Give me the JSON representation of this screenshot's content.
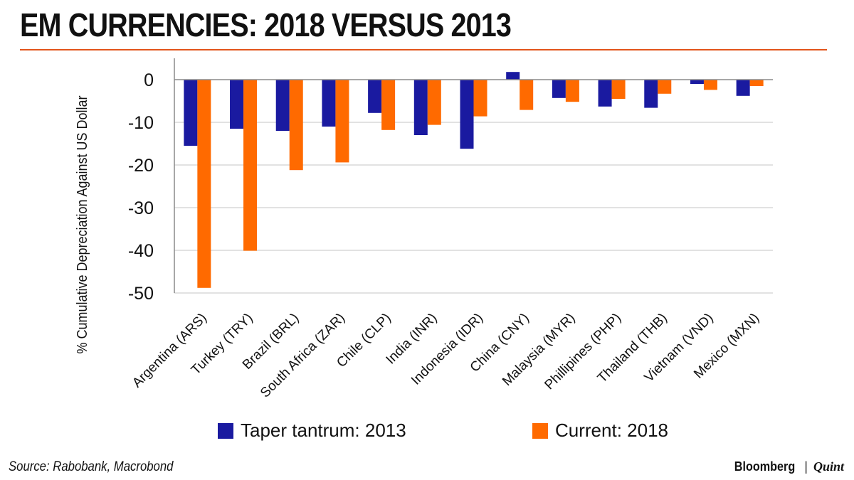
{
  "title": "EM CURRENCIES: 2018 VERSUS 2013",
  "source": "Source: Rabobank, Macrobond",
  "brand": {
    "name": "Bloomberg",
    "separator": "|",
    "partner": "Quint"
  },
  "colors": {
    "accent_rule": "#e2541b",
    "series_2013": "#1a1aa0",
    "series_2018": "#ff6a00",
    "grid": "#d9d9d9"
  },
  "chart_data": {
    "type": "bar",
    "ylabel": "% Cumulative Depreciation Against US Dollar",
    "ylim": [
      -50,
      5
    ],
    "yticks": [
      0,
      -10,
      -20,
      -30,
      -40,
      -50
    ],
    "grid": true,
    "legend_position": "bottom",
    "categories": [
      "Argentina (ARS)",
      "Turkey (TRY)",
      "Brazil (BRL)",
      "South Africa (ZAR)",
      "Chile (CLP)",
      "India (INR)",
      "Indonesia (IDR)",
      "China (CNY)",
      "Malaysia (MYR)",
      "Phillipines (PHP)",
      "Thailand (THB)",
      "Vietnam (VND)",
      "Mexico (MXN)"
    ],
    "series": [
      {
        "name": "Taper tantrum: 2013",
        "values": [
          -15.5,
          -11.5,
          -12.0,
          -11.0,
          -7.8,
          -13.0,
          -16.2,
          1.8,
          -4.3,
          -6.3,
          -6.6,
          -1.0,
          -3.8
        ]
      },
      {
        "name": "Current: 2018",
        "values": [
          -48.8,
          -40.1,
          -21.2,
          -19.4,
          -11.8,
          -10.6,
          -8.6,
          -7.1,
          -5.2,
          -4.5,
          -3.3,
          -2.4,
          -1.5
        ]
      }
    ]
  }
}
